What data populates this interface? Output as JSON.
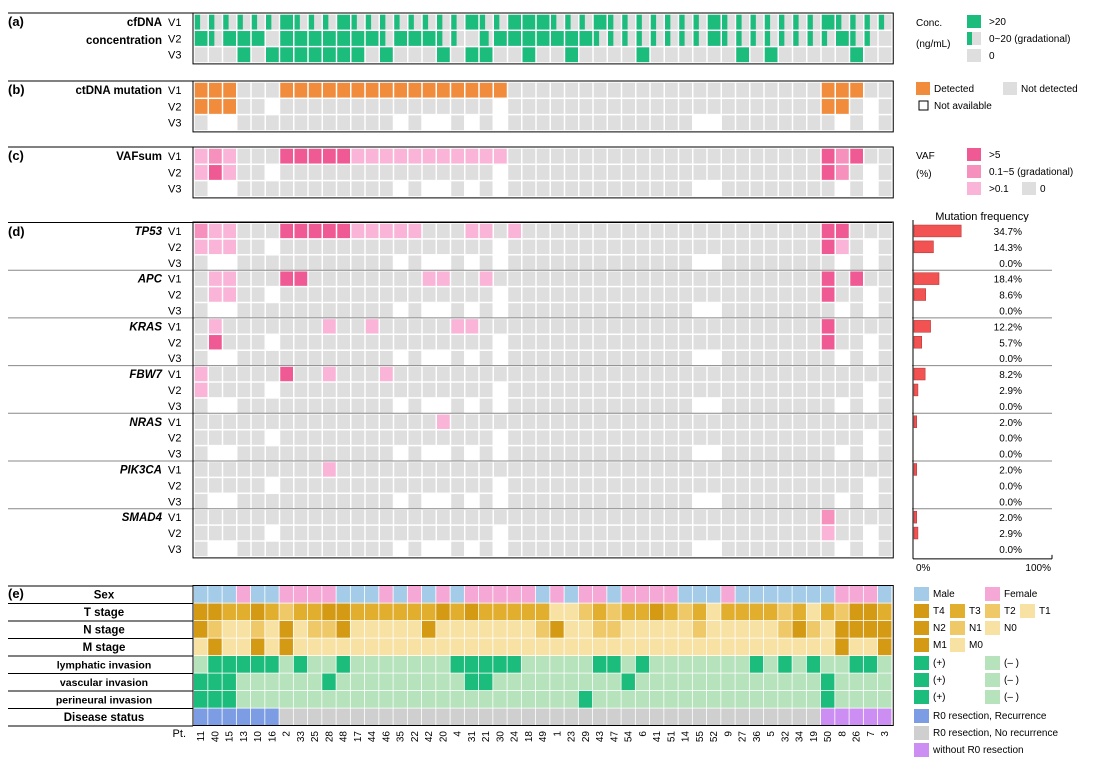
{
  "patients": [
    "11",
    "40",
    "15",
    "13",
    "10",
    "16",
    "2",
    "33",
    "25",
    "28",
    "48",
    "17",
    "44",
    "46",
    "35",
    "22",
    "42",
    "20",
    "4",
    "31",
    "21",
    "30",
    "24",
    "18",
    "49",
    "1",
    "23",
    "29",
    "43",
    "47",
    "54",
    "6",
    "41",
    "51",
    "14",
    "55",
    "52",
    "9",
    "27",
    "36",
    "5",
    "32",
    "34",
    "19",
    "50",
    "8",
    "26",
    "7",
    "3"
  ],
  "pt_label": "Pt.",
  "colors": {
    "green": "#1cbc7c",
    "grey": "#dedede",
    "orange": "#f08c3c",
    "pink_hi": "#f05a94",
    "pink_mid": "#f690bc",
    "pink_lo": "#f9b4d8",
    "bar_red": "#f25252",
    "male": "#a4cce8",
    "female": "#f5a8d6",
    "t4": "#d49a14",
    "t3": "#e2ae2e",
    "t2": "#efc868",
    "t1": "#f7e2a4",
    "pos": "#1cbc7c",
    "neg": "#b6e2bc",
    "rec": "#7c9ce4",
    "norec": "#cfcfcf",
    "noR0": "#cc8ef2"
  },
  "section_a": {
    "letter": "(a)",
    "title_line1": "cfDNA",
    "title_line2": "concentration",
    "visits": [
      "V1",
      "V2",
      "V3"
    ],
    "legend": {
      "title_line1": "Conc.",
      "title_line2": "(ng/mL)",
      "items": [
        ">20",
        "0~20 (gradational)",
        "0"
      ]
    }
  },
  "section_b": {
    "letter": "(b)",
    "title": "ctDNA mutation",
    "visits": [
      "V1",
      "V2",
      "V3"
    ],
    "legend": {
      "detected": "Detected",
      "not_detected": "Not detected",
      "not_available": "Not available"
    }
  },
  "section_c": {
    "letter": "(c)",
    "title": "VAFsum",
    "visits": [
      "V1",
      "V2",
      "V3"
    ],
    "legend": {
      "title_line1": "VAF",
      "title_line2": "(%)",
      "items": [
        ">5",
        "0.1~5 (gradational)",
        ">0.1",
        "0"
      ]
    }
  },
  "section_d": {
    "letter": "(d)",
    "visits": [
      "V1",
      "V2",
      "V3"
    ],
    "freq_title": "Mutation frequency",
    "axis_min": "0%",
    "axis_max": "100%",
    "genes": [
      {
        "name": "TP53",
        "freq": [
          34.7,
          14.3,
          0.0
        ],
        "freq_labels": [
          "34.7%",
          "14.3%",
          "0.0%"
        ]
      },
      {
        "name": "APC",
        "freq": [
          18.4,
          8.6,
          0.0
        ],
        "freq_labels": [
          "18.4%",
          "8.6%",
          "0.0%"
        ]
      },
      {
        "name": "KRAS",
        "freq": [
          12.2,
          5.7,
          0.0
        ],
        "freq_labels": [
          "12.2%",
          "5.7%",
          "0.0%"
        ]
      },
      {
        "name": "FBW7",
        "freq": [
          8.2,
          2.9,
          0.0
        ],
        "freq_labels": [
          "8.2%",
          "2.9%",
          "0.0%"
        ]
      },
      {
        "name": "NRAS",
        "freq": [
          2.0,
          0.0,
          0.0
        ],
        "freq_labels": [
          "2.0%",
          "0.0%",
          "0.0%"
        ]
      },
      {
        "name": "PIK3CA",
        "freq": [
          2.0,
          0.0,
          0.0
        ],
        "freq_labels": [
          "2.0%",
          "0.0%",
          "0.0%"
        ]
      },
      {
        "name": "SMAD4",
        "freq": [
          2.0,
          2.9,
          0.0
        ],
        "freq_labels": [
          "2.0%",
          "2.9%",
          "0.0%"
        ]
      }
    ]
  },
  "section_e": {
    "letter": "(e)",
    "rows": [
      "Sex",
      "T stage",
      "N stage",
      "M stage",
      "lymphatic invasion",
      "vascular invasion",
      "perineural invasion",
      "Disease status"
    ],
    "legend": {
      "male": "Male",
      "female": "Female",
      "t4": "T4",
      "t3": "T3",
      "t2": "T2",
      "t1": "T1",
      "n2": "N2",
      "n1": "N1",
      "n0": "N0",
      "m1": "M1",
      "m0": "M0",
      "pos": "(+)",
      "neg": "(– )",
      "rec": "R0 resection, Recurrence",
      "norec": "R0 resection, No recurrence",
      "noR0": "without R0 resection"
    }
  }
}
